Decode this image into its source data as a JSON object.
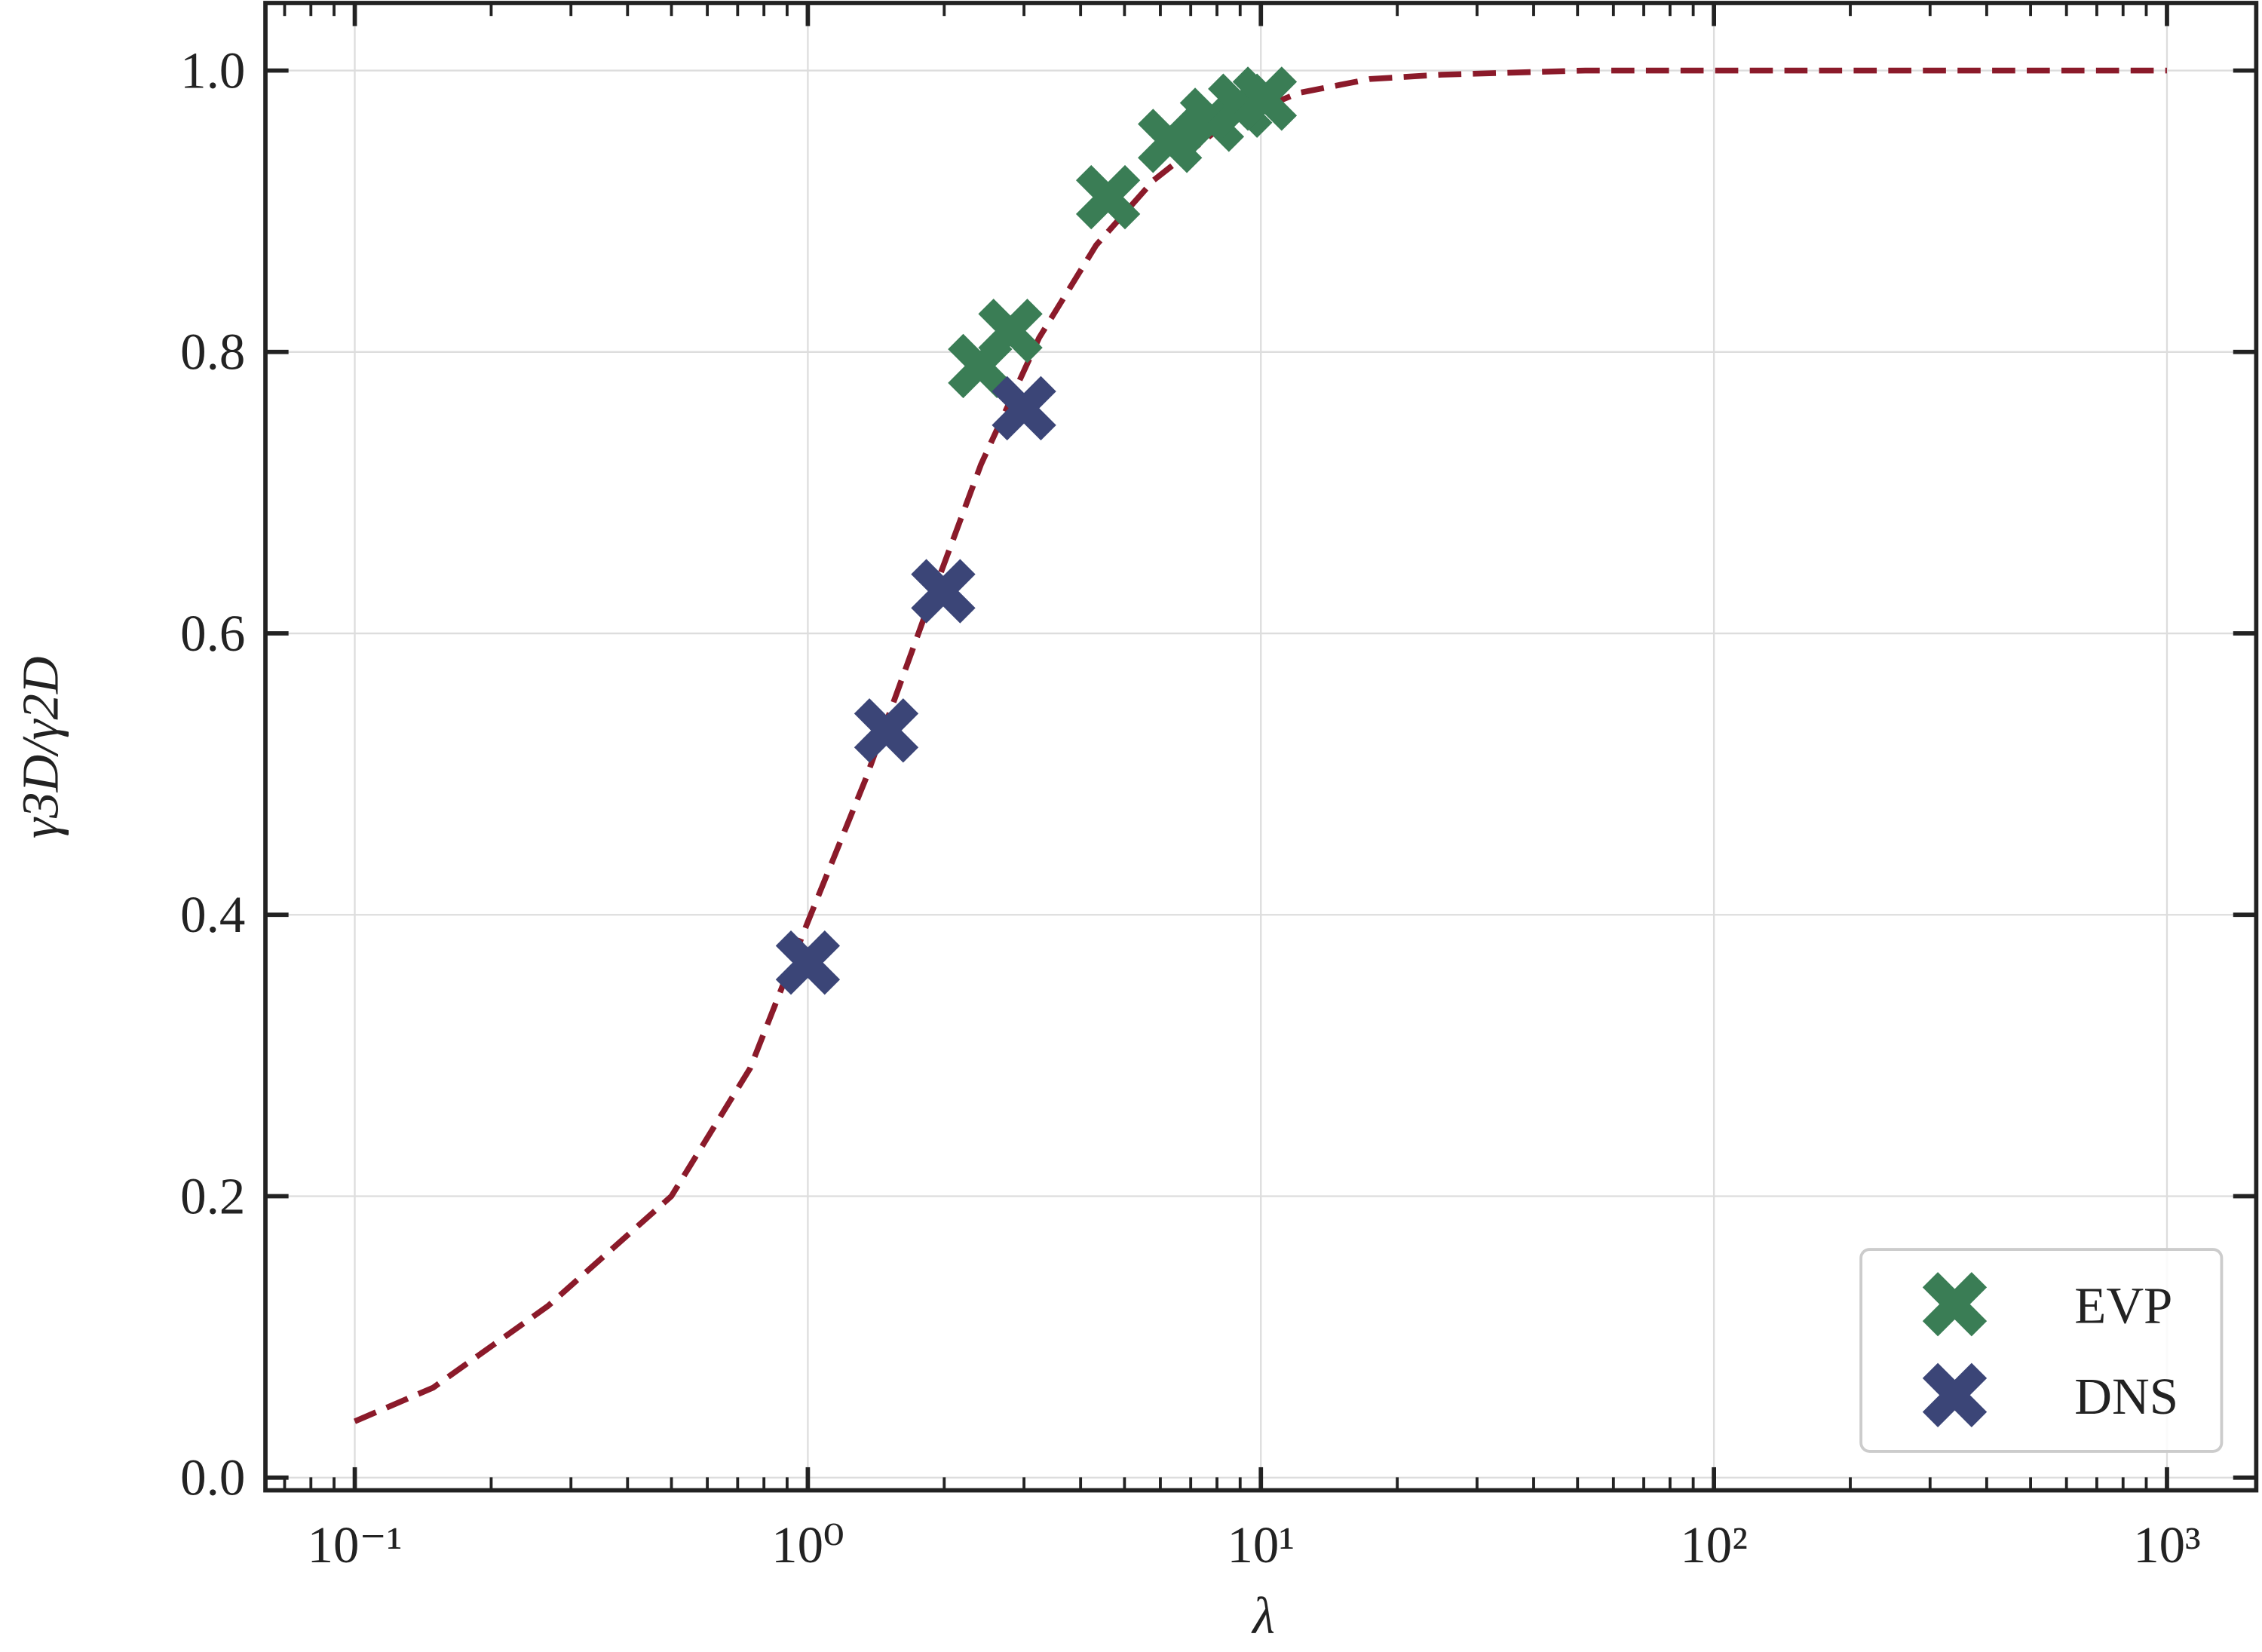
{
  "chart_data": {
    "type": "scatter",
    "xlabel": "λ",
    "ylabel": "γ3D/γ2D",
    "xscale": "log",
    "grid": true,
    "minor_ticks": true,
    "legend": "lower right",
    "xlim": [
      0.0635,
      1574
    ],
    "ylim": [
      -0.009,
      1.048
    ],
    "xticks": [
      {
        "value": 0.1,
        "label": "10⁻¹"
      },
      {
        "value": 1,
        "label": "10⁰"
      },
      {
        "value": 10,
        "label": "10¹"
      },
      {
        "value": 100,
        "label": "10²"
      },
      {
        "value": 1000,
        "label": "10³"
      }
    ],
    "yticks": [
      {
        "value": 0,
        "label": "0.0"
      },
      0.2,
      0.4,
      0.6,
      0.8,
      {
        "value": 1,
        "label": "1.0"
      }
    ],
    "series": [
      {
        "name": "EVP",
        "color": "#3a7d55",
        "x": [
          2.4,
          2.8,
          4.6,
          6.3,
          7.8,
          9.0,
          10.2
        ],
        "values": [
          0.79,
          0.815,
          0.91,
          0.95,
          0.965,
          0.975,
          0.98
        ]
      },
      {
        "name": "DNS",
        "color": "#3b4577",
        "x": [
          1.0,
          1.49,
          1.99,
          3.0
        ],
        "values": [
          0.366,
          0.531,
          0.63,
          0.76
        ]
      }
    ],
    "curve": {
      "color": "#8b1a2a",
      "style": "dashed",
      "x": [
        0.1,
        0.149,
        0.267,
        0.5,
        0.746,
        1.0,
        1.34,
        1.8,
        2.41,
        3.24,
        4.33,
        5.8,
        8.4,
        12.1,
        17.4,
        25,
        52,
        1000
      ],
      "values": [
        0.04,
        0.064,
        0.122,
        0.2,
        0.291,
        0.395,
        0.496,
        0.61,
        0.72,
        0.81,
        0.876,
        0.922,
        0.963,
        0.984,
        0.994,
        0.997,
        1.0,
        1.0
      ]
    }
  }
}
